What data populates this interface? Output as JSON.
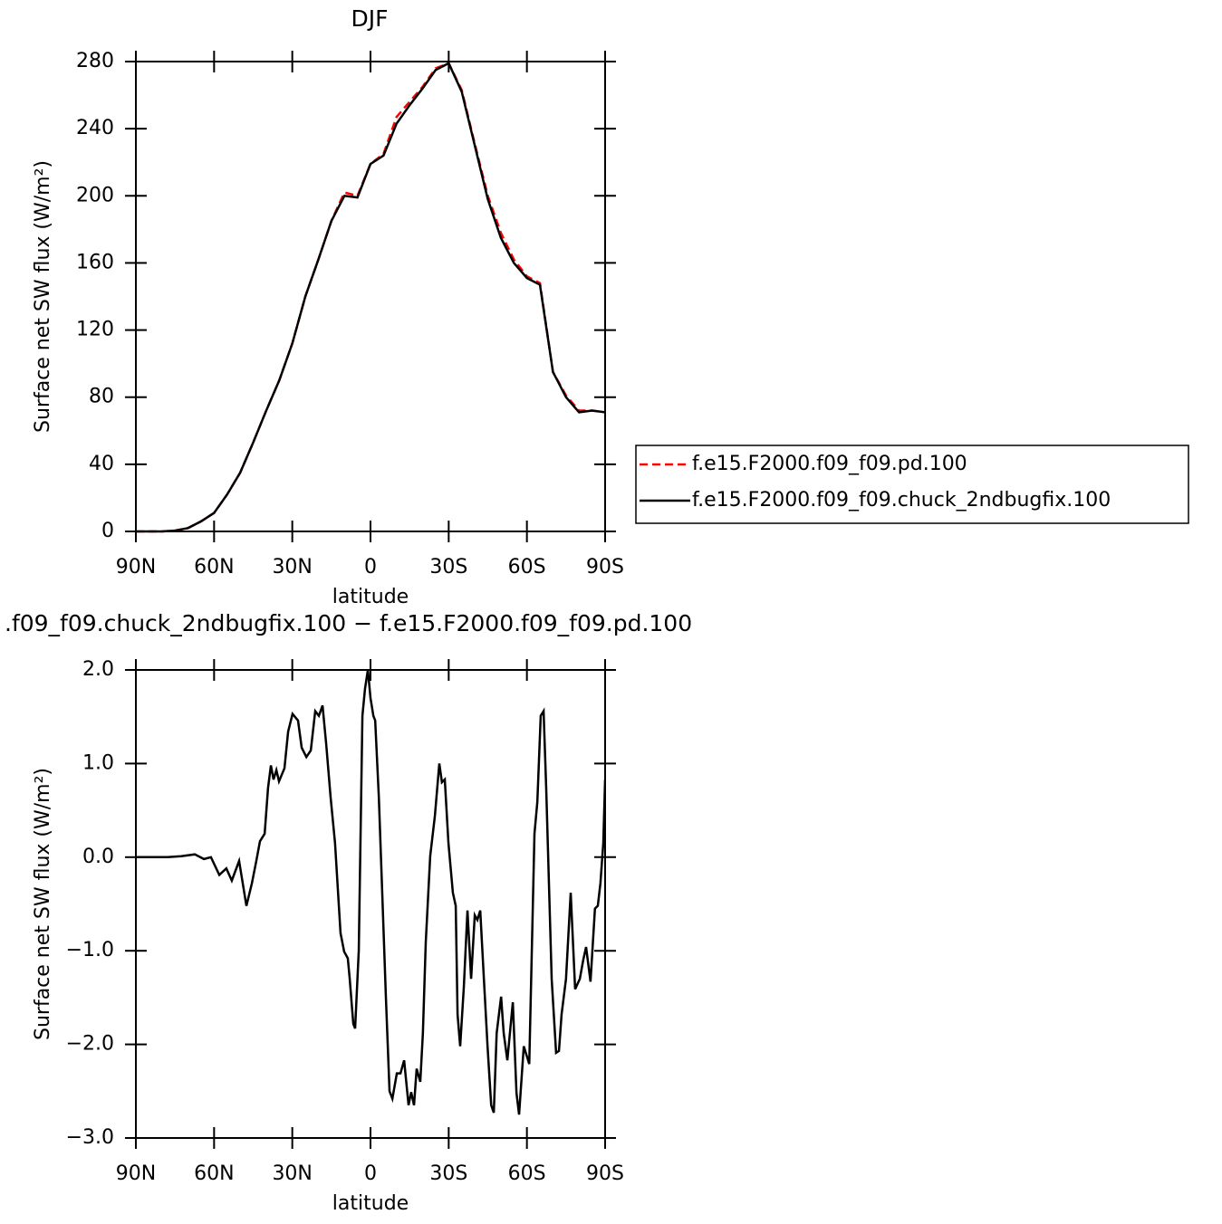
{
  "chart_data": [
    {
      "type": "line",
      "title": "DJF",
      "xlabel": "latitude",
      "ylabel": "Surface net SW flux (W/m²)",
      "x": [
        90,
        85,
        80,
        75,
        70,
        65,
        60,
        55,
        50,
        45,
        40,
        35,
        30,
        25,
        20,
        15,
        10,
        5,
        0,
        -5,
        -10,
        -15,
        -20,
        -25,
        -30,
        -35,
        -40,
        -45,
        -50,
        -55,
        -60,
        -65,
        -70,
        -75,
        -80,
        -85,
        -90
      ],
      "series": [
        {
          "name": "f.e15.F2000.f09_f09.pd.100",
          "color": "#ff0000",
          "linestyle": "dashed",
          "values": [
            0,
            0,
            0,
            0.5,
            2,
            6,
            11,
            22,
            35,
            53,
            72,
            90,
            112,
            140,
            162,
            185,
            202,
            200,
            219,
            225,
            247,
            256,
            265,
            276,
            279,
            263,
            231,
            200,
            178,
            162,
            152,
            148,
            95,
            81,
            72,
            72,
            71
          ]
        },
        {
          "name": "f.e15.F2000.f09_f09.chuck_2ndbugfix.100",
          "color": "#000000",
          "linestyle": "solid",
          "values": [
            0,
            0,
            0,
            0.5,
            2,
            6,
            11,
            22,
            35,
            53,
            72,
            90,
            112,
            140,
            162,
            185,
            200,
            199,
            219,
            224,
            243,
            254,
            264,
            275,
            279,
            262,
            230,
            198,
            175,
            160,
            151,
            147,
            95,
            80,
            71,
            72,
            71
          ]
        }
      ],
      "xlim": [
        90,
        -90
      ],
      "xticks": [
        {
          "value": 90,
          "label": "90N"
        },
        {
          "value": 60,
          "label": "60N"
        },
        {
          "value": 30,
          "label": "30N"
        },
        0,
        {
          "value": -30,
          "label": "30S"
        },
        {
          "value": -60,
          "label": "60S"
        },
        {
          "value": -90,
          "label": "90S"
        }
      ],
      "ylim": [
        0,
        280
      ],
      "yticks": [
        0,
        40,
        80,
        120,
        160,
        200,
        240,
        280
      ],
      "legend": "right"
    },
    {
      "type": "line",
      "title": ".f09_f09.chuck_2ndbugfix.100 − f.e15.F2000.f09_f09.pd.100",
      "xlabel": "latitude",
      "ylabel": "Surface net SW flux (W/m²)",
      "x": [
        90,
        77.8,
        72.6,
        67.4,
        63.9,
        61.2,
        58.0,
        55.3,
        53.2,
        50.4,
        47.6,
        45.5,
        43.8,
        42.4,
        40.6,
        39.3,
        38.2,
        37.2,
        36.1,
        35.1,
        33.0,
        31.6,
        29.9,
        27.8,
        26.4,
        24.6,
        22.9,
        21.2,
        19.8,
        18.4,
        17.0,
        15.3,
        13.6,
        11.5,
        10.1,
        8.7,
        8.0,
        6.6,
        5.9,
        4.5,
        3.1,
        2.1,
        1.0,
        0.0,
        -1.1,
        -1.8,
        -3.2,
        -4.5,
        -5.9,
        -7.3,
        -8.4,
        -10.1,
        -11.5,
        -12.9,
        -14.6,
        -15.6,
        -16.7,
        -17.7,
        -19.1,
        -20.1,
        -21.2,
        -22.9,
        -24.7,
        -26.4,
        -27.4,
        -28.5,
        -29.9,
        -31.6,
        -32.7,
        -33.4,
        -34.4,
        -35.8,
        -37.2,
        -38.6,
        -40.0,
        -41.0,
        -42.1,
        -43.5,
        -44.9,
        -46.3,
        -47.3,
        -48.4,
        -50.1,
        -51.1,
        -52.5,
        -54.6,
        -56.0,
        -57.0,
        -58.8,
        -60.9,
        -62.9,
        -64.0,
        -65.3,
        -66.4,
        -67.4,
        -68.4,
        -69.5,
        -71.2,
        -72.3,
        -73.3,
        -75.0,
        -76.8,
        -78.5,
        -80.3,
        -81.6,
        -82.7,
        -84.4,
        -86.1,
        -87.2,
        -88.2,
        -89.3,
        -90
      ],
      "series": [
        {
          "color": "#000000",
          "linestyle": "solid",
          "values": [
            0,
            0,
            0.01,
            0.03,
            -0.02,
            0,
            -0.19,
            -0.12,
            -0.25,
            -0.04,
            -0.52,
            -0.28,
            -0.04,
            0.17,
            0.25,
            0.74,
            0.98,
            0.83,
            0.93,
            0.81,
            0.95,
            1.34,
            1.53,
            1.46,
            1.17,
            1.07,
            1.14,
            1.56,
            1.51,
            1.62,
            1.21,
            0.64,
            0.15,
            -0.81,
            -1.01,
            -1.08,
            -1.29,
            -1.78,
            -1.83,
            -1.0,
            1.51,
            1.8,
            2.0,
            1.7,
            1.51,
            1.46,
            0.64,
            -0.38,
            -1.49,
            -2.5,
            -2.58,
            -2.31,
            -2.31,
            -2.17,
            -2.65,
            -2.51,
            -2.65,
            -2.26,
            -2.4,
            -1.88,
            -0.91,
            0.01,
            0.44,
            1.0,
            0.8,
            0.83,
            0.15,
            -0.38,
            -0.52,
            -1.68,
            -2.02,
            -1.39,
            -0.57,
            -1.3,
            -0.62,
            -0.67,
            -0.57,
            -1.3,
            -2.02,
            -2.65,
            -2.73,
            -1.88,
            -1.49,
            -1.88,
            -2.17,
            -1.55,
            -2.52,
            -2.75,
            -2.02,
            -2.21,
            0.25,
            0.59,
            1.51,
            1.56,
            0.74,
            -0.23,
            -1.3,
            -2.09,
            -2.07,
            -1.68,
            -1.3,
            -0.38,
            -1.41,
            -1.3,
            -1.1,
            -0.96,
            -1.33,
            -0.55,
            -0.52,
            -0.28,
            0.15,
            0.83
          ]
        }
      ],
      "xlim": [
        90,
        -90
      ],
      "xticks": [
        {
          "value": 90,
          "label": "90N"
        },
        {
          "value": 60,
          "label": "60N"
        },
        {
          "value": 30,
          "label": "30N"
        },
        0,
        {
          "value": -30,
          "label": "30S"
        },
        {
          "value": -60,
          "label": "60S"
        },
        {
          "value": -90,
          "label": "90S"
        }
      ],
      "ylim": [
        -3,
        2
      ],
      "yticks": [
        {
          "value": -3,
          "label": "−3.0"
        },
        {
          "value": -2,
          "label": "−2.0"
        },
        {
          "value": -1,
          "label": "−1.0"
        },
        {
          "value": 0,
          "label": "0.0"
        },
        {
          "value": 1,
          "label": "1.0"
        },
        {
          "value": 2,
          "label": "2.0"
        }
      ]
    }
  ]
}
